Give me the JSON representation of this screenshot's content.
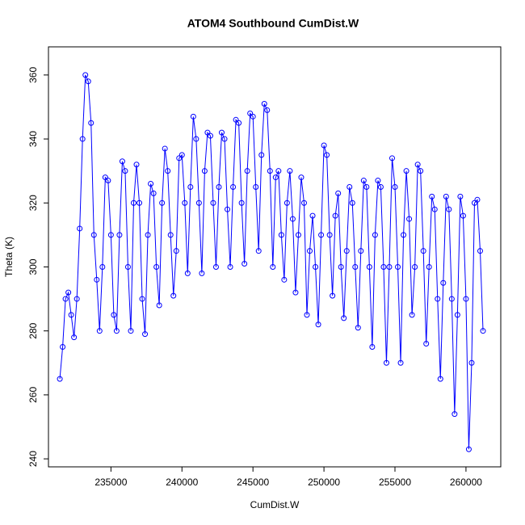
{
  "chart_data": {
    "type": "line",
    "title": "ATOM4 Southbound CumDist.W",
    "x_label": "CumDist.W",
    "y_label": "Theta (K)",
    "xlim": [
      230600,
      262450
    ],
    "ylim": [
      237.5,
      368.8
    ],
    "xticks": [
      235000,
      240000,
      245000,
      250000,
      255000,
      260000
    ],
    "yticks": [
      240,
      260,
      280,
      300,
      320,
      340,
      360
    ],
    "markers": true,
    "grid": false,
    "x": [
      231400,
      231600,
      231800,
      232000,
      232200,
      232400,
      232600,
      232800,
      233000,
      233200,
      233400,
      233600,
      233800,
      234000,
      234200,
      234400,
      234600,
      234800,
      235000,
      235200,
      235400,
      235600,
      235800,
      236000,
      236200,
      236400,
      236600,
      236800,
      237000,
      237200,
      237400,
      237600,
      237800,
      238000,
      238200,
      238400,
      238600,
      238800,
      239000,
      239200,
      239400,
      239600,
      239800,
      240000,
      240200,
      240400,
      240600,
      240800,
      241000,
      241200,
      241400,
      241600,
      241800,
      242000,
      242200,
      242400,
      242600,
      242800,
      243000,
      243200,
      243400,
      243600,
      243800,
      244000,
      244200,
      244400,
      244600,
      244800,
      245000,
      245200,
      245400,
      245600,
      245800,
      246000,
      246200,
      246400,
      246600,
      246800,
      247000,
      247200,
      247400,
      247600,
      247800,
      248000,
      248200,
      248400,
      248600,
      248800,
      249000,
      249200,
      249400,
      249600,
      249800,
      250000,
      250200,
      250400,
      250600,
      250800,
      251000,
      251200,
      251400,
      251600,
      251800,
      252000,
      252200,
      252400,
      252600,
      252800,
      253000,
      253200,
      253400,
      253600,
      253800,
      254000,
      254200,
      254400,
      254600,
      254800,
      255000,
      255200,
      255400,
      255600,
      255800,
      256000,
      256200,
      256400,
      256600,
      256800,
      257000,
      257200,
      257400,
      257600,
      257800,
      258000,
      258200,
      258400,
      258600,
      258800,
      259000,
      259200,
      259400,
      259600,
      259800,
      260000,
      260200,
      260400,
      260600,
      260800,
      261000,
      261200
    ],
    "series": [
      {
        "name": "Theta",
        "color": "#0000ff",
        "values": [
          265,
          275,
          290,
          292,
          285,
          278,
          290,
          312,
          340,
          360,
          358,
          345,
          310,
          296,
          280,
          300,
          328,
          327,
          310,
          285,
          280,
          310,
          333,
          330,
          300,
          280,
          320,
          332,
          320,
          290,
          279,
          310,
          326,
          323,
          300,
          288,
          320,
          337,
          330,
          310,
          291,
          305,
          334,
          335,
          320,
          298,
          325,
          347,
          340,
          320,
          298,
          330,
          342,
          341,
          320,
          300,
          325,
          342,
          340,
          318,
          300,
          325,
          346,
          345,
          320,
          301,
          330,
          348,
          347,
          325,
          305,
          335,
          351,
          349,
          330,
          300,
          328,
          330,
          310,
          296,
          320,
          330,
          315,
          292,
          310,
          328,
          320,
          285,
          305,
          316,
          300,
          282,
          310,
          338,
          335,
          310,
          291,
          316,
          323,
          300,
          284,
          305,
          325,
          320,
          300,
          281,
          305,
          327,
          325,
          300,
          275,
          310,
          327,
          325,
          300,
          270,
          300,
          334,
          325,
          300,
          270,
          310,
          330,
          315,
          285,
          300,
          332,
          330,
          305,
          276,
          300,
          322,
          318,
          290,
          265,
          295,
          322,
          318,
          290,
          254,
          285,
          322,
          316,
          290,
          243,
          270,
          320,
          321,
          305,
          280
        ]
      }
    ]
  }
}
